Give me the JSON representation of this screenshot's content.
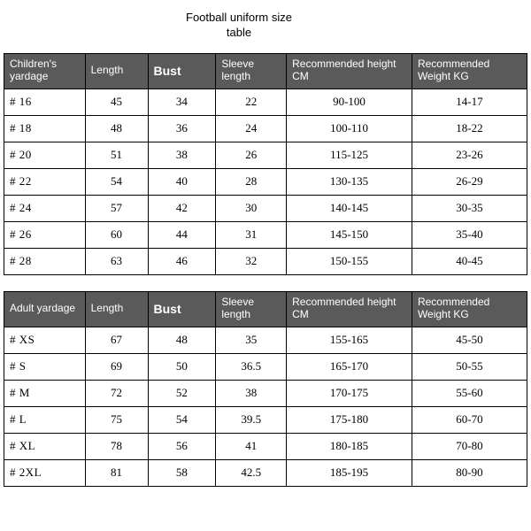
{
  "title_line1": "Football uniform size",
  "title_line2": "table",
  "children_table": {
    "headers": [
      "Children's yardage",
      "Length",
      "Bust",
      "Sleeve length",
      "Recommended height CM",
      "Recommended Weight KG"
    ],
    "rows": [
      [
        "# 16",
        "45",
        "34",
        "22",
        "90-100",
        "14-17"
      ],
      [
        "# 18",
        "48",
        "36",
        "24",
        "100-110",
        "18-22"
      ],
      [
        "# 20",
        "51",
        "38",
        "26",
        "115-125",
        "23-26"
      ],
      [
        "# 22",
        "54",
        "40",
        "28",
        "130-135",
        "26-29"
      ],
      [
        "# 24",
        "57",
        "42",
        "30",
        "140-145",
        "30-35"
      ],
      [
        "# 26",
        "60",
        "44",
        "31",
        "145-150",
        "35-40"
      ],
      [
        "# 28",
        "63",
        "46",
        "32",
        "150-155",
        "40-45"
      ]
    ]
  },
  "adult_table": {
    "headers": [
      "Adult yardage",
      "Length",
      "Bust",
      "Sleeve length",
      "Recommended height CM",
      "Recommended Weight KG"
    ],
    "rows": [
      [
        "# XS",
        "67",
        "48",
        "35",
        "155-165",
        "45-50"
      ],
      [
        "# S",
        "69",
        "50",
        "36.5",
        "165-170",
        "50-55"
      ],
      [
        "# M",
        "72",
        "52",
        "38",
        "170-175",
        "55-60"
      ],
      [
        "# L",
        "75",
        "54",
        "39.5",
        "175-180",
        "60-70"
      ],
      [
        "# XL",
        "78",
        "56",
        "41",
        "180-185",
        "70-80"
      ],
      [
        "# 2XL",
        "81",
        "58",
        "42.5",
        "185-195",
        "80-90"
      ]
    ]
  },
  "colors": {
    "header_bg": "#5a5a5a",
    "header_text": "#ffffff",
    "border": "#000000",
    "body_text": "#000000",
    "page_bg": "#ffffff"
  }
}
